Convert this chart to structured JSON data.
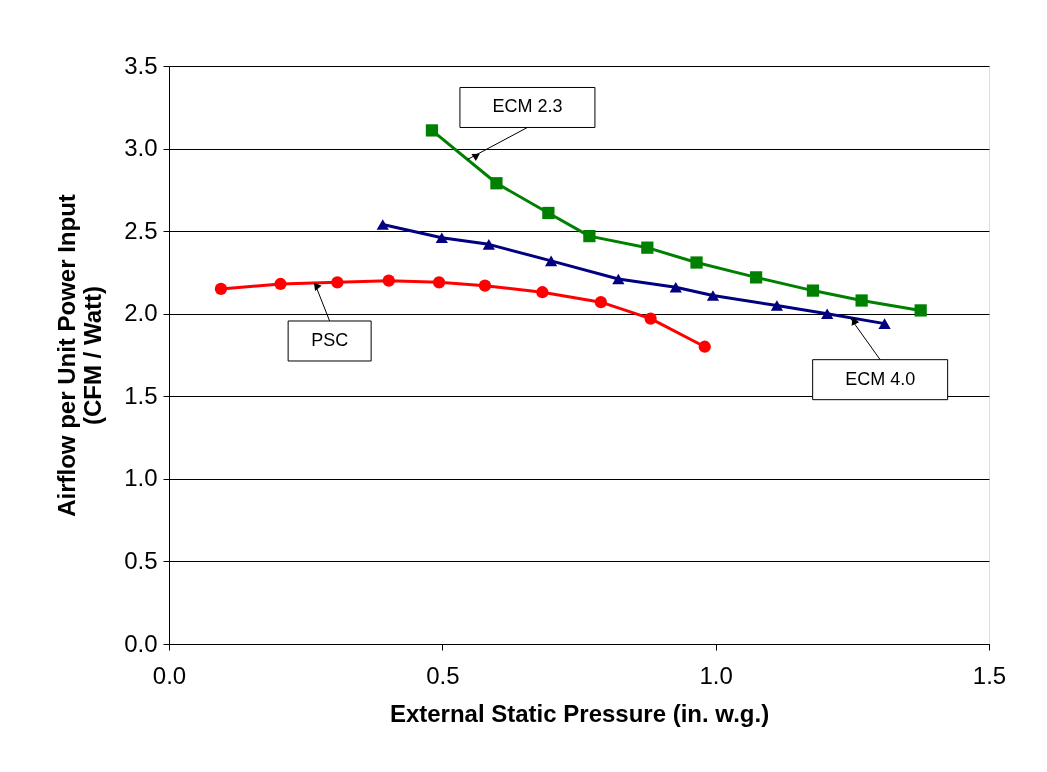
{
  "chart_data": {
    "type": "line",
    "xlabel": "External Static Pressure (in. w.g.)",
    "ylabel": "Airflow per Unit Power Input\n(CFM / Watt)",
    "xlim": [
      0,
      1.5
    ],
    "xticks": [
      {
        "value": 0,
        "label": "0.0"
      },
      0.5,
      {
        "value": 1,
        "label": "1.0"
      },
      1.5
    ],
    "ylim": [
      0,
      3.5
    ],
    "yticks": [
      {
        "value": 0,
        "label": "0.0"
      },
      0.5,
      {
        "value": 1,
        "label": "1.0"
      },
      1.5,
      {
        "value": 2,
        "label": "2.0"
      },
      2.5,
      {
        "value": 3,
        "label": "3.0"
      },
      3.5
    ],
    "grid": "y",
    "legend": false,
    "series": [
      {
        "name": "PSC",
        "color": "#ff0000",
        "marker": "circle",
        "x": [
          0.095,
          0.204,
          0.308,
          0.402,
          0.494,
          0.578,
          0.683,
          0.79,
          0.881,
          0.98
        ],
        "values": [
          2.15,
          2.18,
          2.19,
          2.2,
          2.19,
          2.17,
          2.13,
          2.07,
          1.97,
          1.8
        ]
      },
      {
        "name": "ECM 4.0",
        "color": "#000080",
        "marker": "triangle",
        "x": [
          0.391,
          0.499,
          0.585,
          0.699,
          0.822,
          0.927,
          0.995,
          1.112,
          1.204,
          1.309
        ],
        "values": [
          2.54,
          2.46,
          2.42,
          2.32,
          2.21,
          2.16,
          2.11,
          2.05,
          2.0,
          1.94
        ]
      },
      {
        "name": "ECM 2.3",
        "color": "#008000",
        "marker": "square",
        "x": [
          0.481,
          0.599,
          0.694,
          0.769,
          0.875,
          0.965,
          1.074,
          1.178,
          1.267,
          1.375
        ],
        "values": [
          3.11,
          2.79,
          2.61,
          2.47,
          2.4,
          2.31,
          2.22,
          2.14,
          2.08,
          2.02
        ]
      }
    ]
  }
}
